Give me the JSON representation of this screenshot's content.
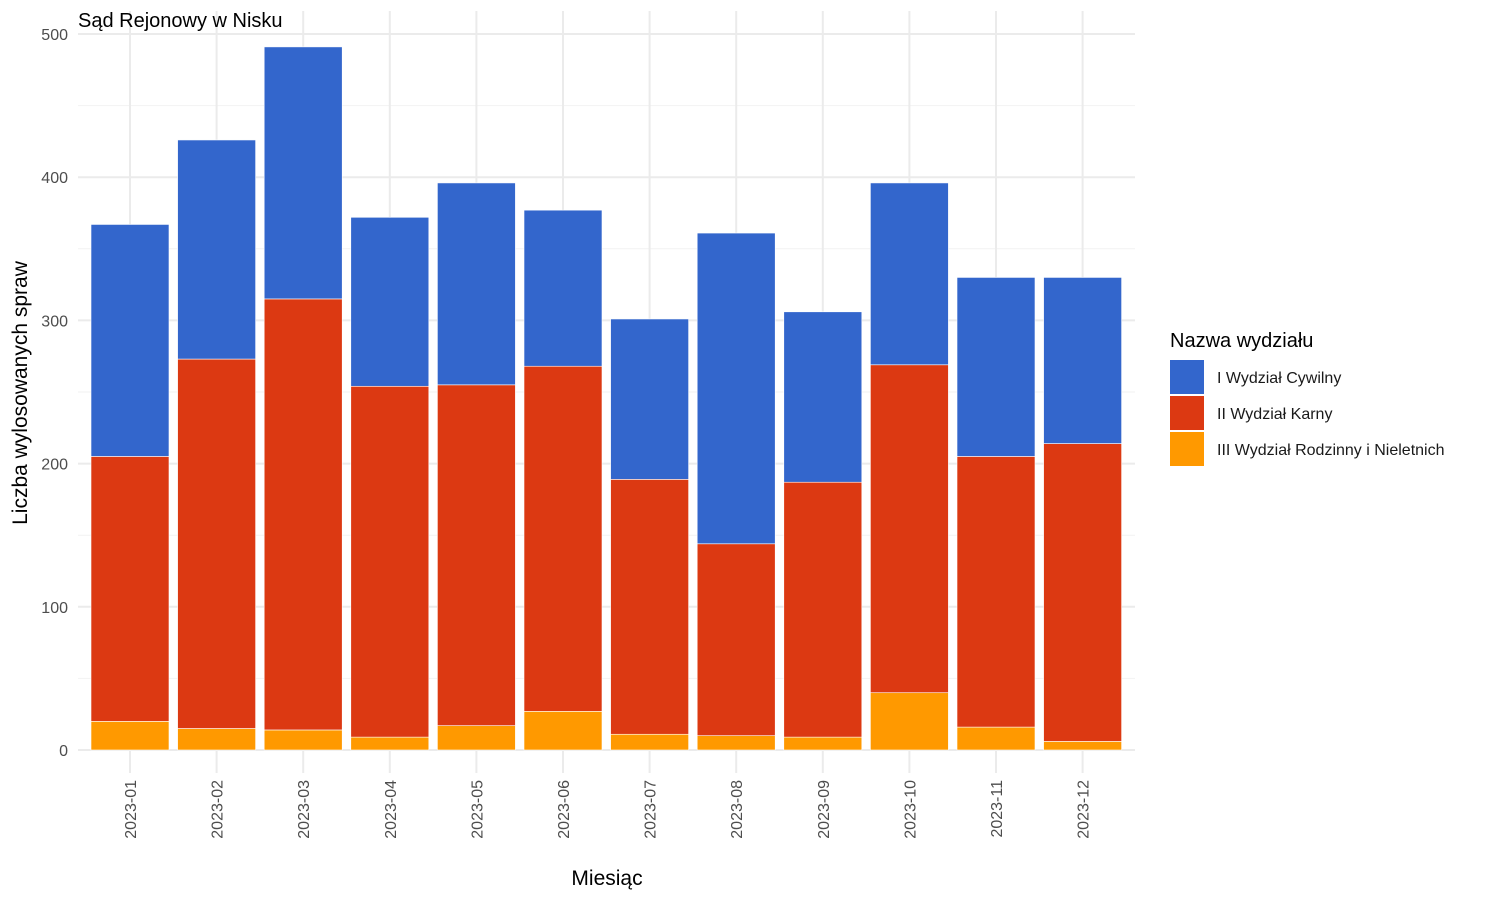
{
  "chart_data": {
    "type": "bar",
    "stacked": true,
    "title": "Sąd Rejonowy w Nisku",
    "xlabel": "Miesiąc",
    "ylabel": "Liczba wylosowanych spraw",
    "ylim": [
      0,
      500
    ],
    "yticks": [
      0,
      100,
      200,
      300,
      400,
      500
    ],
    "grid": true,
    "legend": {
      "title": "Nazwa wydziału",
      "position": "right"
    },
    "categories": [
      "2023-01",
      "2023-02",
      "2023-03",
      "2023-04",
      "2023-05",
      "2023-06",
      "2023-07",
      "2023-08",
      "2023-09",
      "2023-10",
      "2023-11",
      "2023-12"
    ],
    "series": [
      {
        "name": "III Wydział Rodzinny i Nieletnich",
        "color": "#FF9900",
        "values": [
          20,
          15,
          14,
          9,
          17,
          27,
          11,
          10,
          9,
          40,
          16,
          6
        ]
      },
      {
        "name": "II Wydział Karny",
        "color": "#DC3912",
        "values": [
          185,
          258,
          301,
          245,
          238,
          241,
          178,
          134,
          178,
          229,
          189,
          208
        ]
      },
      {
        "name": "I Wydział Cywilny",
        "color": "#3366CC",
        "values": [
          162,
          153,
          176,
          118,
          141,
          109,
          112,
          217,
          119,
          127,
          125,
          116
        ]
      }
    ],
    "legend_order": [
      "I Wydział Cywilny",
      "II Wydział Karny",
      "III Wydział Rodzinny i Nieletnich"
    ]
  }
}
